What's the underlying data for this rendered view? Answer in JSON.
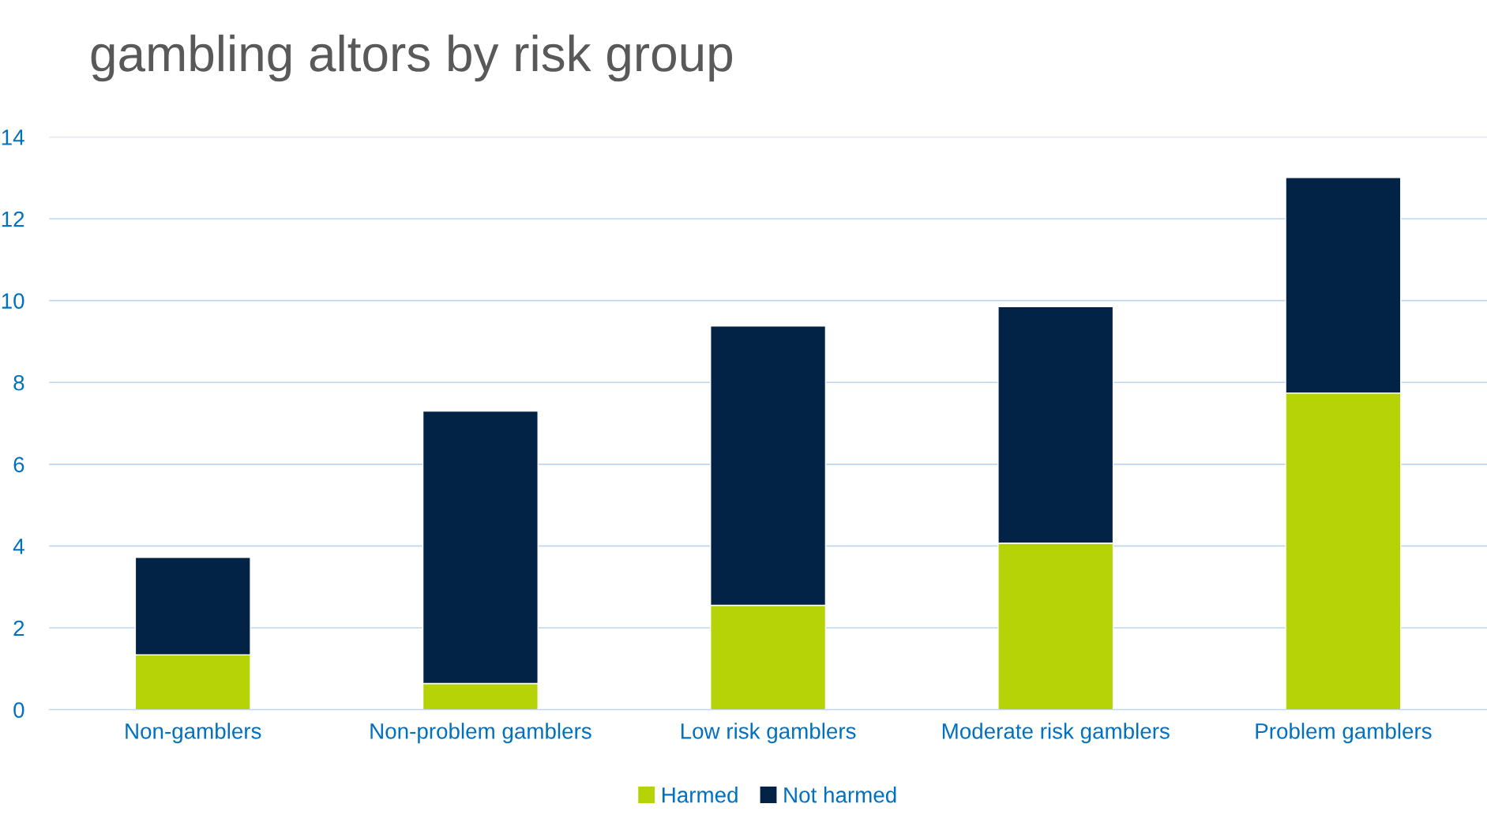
{
  "chart_data": {
    "type": "bar",
    "title": "gambling altors by risk group",
    "categories": [
      "Non-gamblers",
      "Non-problem gamblers",
      "Low risk gamblers",
      "Moderate risk gamblers",
      "Problem gamblers"
    ],
    "stacked": true,
    "series": [
      {
        "name": "Harmed",
        "color": "#b5d306",
        "values": [
          1.34,
          0.64,
          2.55,
          4.07,
          7.74
        ]
      },
      {
        "name": "Not harmed",
        "color": "#022346",
        "values": [
          2.38,
          6.66,
          6.83,
          5.78,
          5.27
        ]
      }
    ],
    "ylim": [
      0,
      14
    ],
    "yticks": [
      0,
      2,
      4,
      6,
      8,
      10,
      12,
      14
    ],
    "grid": "y",
    "legend": "bottom"
  }
}
